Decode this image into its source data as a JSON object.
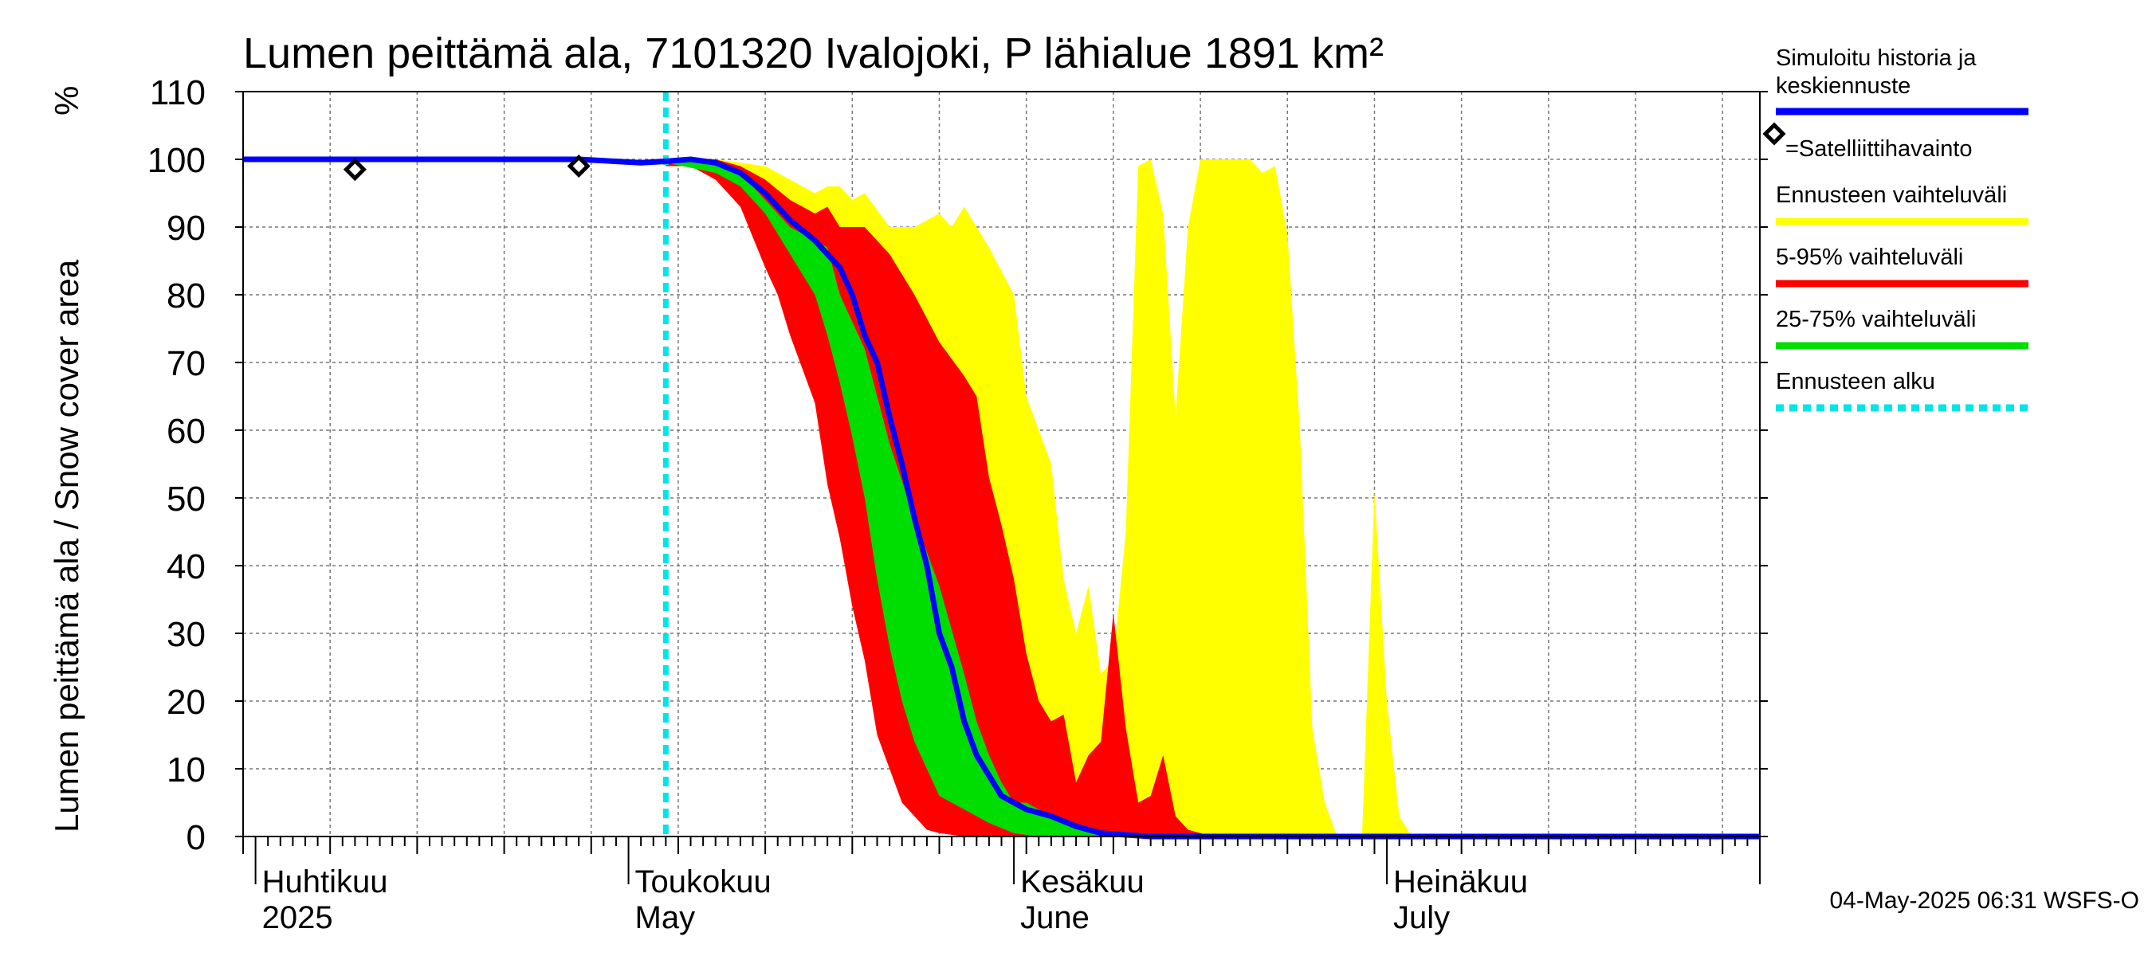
{
  "chart_data": {
    "type": "area",
    "title": "Lumen peittämä ala, 7101320 Ivalojoki, P lähialue 1891 km²",
    "ylabel": "Lumen peittämä ala / Snow cover area",
    "yunit": "%",
    "ylim": [
      0,
      110
    ],
    "yticks": [
      "0",
      "10",
      "20",
      "30",
      "40",
      "50",
      "60",
      "70",
      "80",
      "90",
      "100",
      "110"
    ],
    "xlim": [
      "2025-03-31",
      "2025-07-31"
    ],
    "grid": true,
    "legend_position": "right",
    "months": [
      {
        "date": "2025-04-01",
        "fi": "Huhtikuu",
        "en": "2025"
      },
      {
        "date": "2025-05-01",
        "fi": "Toukokuu",
        "en": "May"
      },
      {
        "date": "2025-06-01",
        "fi": "Kesäkuu",
        "en": "June"
      },
      {
        "date": "2025-07-01",
        "fi": "Heinäkuu",
        "en": "July"
      }
    ],
    "forecast_start": "2025-05-04",
    "timestamp": "04-May-2025 06:31 WSFS-O",
    "legend": [
      {
        "label": "Simuloitu historia ja keskiennuste",
        "lines": [
          "Simuloitu historia ja",
          "keskiennuste"
        ],
        "color": "#0000ff",
        "style": "solid"
      },
      {
        "label": "=Satelliittihavainto",
        "color": "#000000",
        "style": "marker"
      },
      {
        "label": "Ennusteen vaihteluväli",
        "color": "#ffff00",
        "style": "solid"
      },
      {
        "label": "5-95% vaihteluväli",
        "color": "#ff0000",
        "style": "solid"
      },
      {
        "label": "25-75% vaihteluväli",
        "color": "#00dd00",
        "style": "solid"
      },
      {
        "label": "Ennusteen alku",
        "color": "#00e5e5",
        "style": "dashed"
      }
    ],
    "satellite_points": [
      {
        "date": "2025-04-09",
        "value": 98.5
      },
      {
        "date": "2025-04-27",
        "value": 99
      }
    ],
    "series": [
      {
        "name": "Simuloitu historia ja keskiennuste",
        "color": "#0000ff",
        "points": [
          [
            "2025-03-31",
            100
          ],
          [
            "2025-04-27",
            100
          ],
          [
            "2025-05-02",
            99.5
          ],
          [
            "2025-05-04",
            99.7
          ],
          [
            "2025-05-06",
            100
          ],
          [
            "2025-05-08",
            99.5
          ],
          [
            "2025-05-10",
            98
          ],
          [
            "2025-05-12",
            95
          ],
          [
            "2025-05-14",
            91
          ],
          [
            "2025-05-16",
            88
          ],
          [
            "2025-05-18",
            84
          ],
          [
            "2025-05-19",
            80
          ],
          [
            "2025-05-20",
            74
          ],
          [
            "2025-05-21",
            70
          ],
          [
            "2025-05-22",
            62
          ],
          [
            "2025-05-23",
            55
          ],
          [
            "2025-05-24",
            47
          ],
          [
            "2025-05-25",
            40
          ],
          [
            "2025-05-26",
            30
          ],
          [
            "2025-05-27",
            25
          ],
          [
            "2025-05-28",
            17
          ],
          [
            "2025-05-29",
            12
          ],
          [
            "2025-05-30",
            9
          ],
          [
            "2025-05-31",
            6
          ],
          [
            "2025-06-02",
            4
          ],
          [
            "2025-06-04",
            3
          ],
          [
            "2025-06-06",
            1.5
          ],
          [
            "2025-06-08",
            0.5
          ],
          [
            "2025-06-12",
            0
          ],
          [
            "2025-07-31",
            0
          ]
        ]
      }
    ],
    "bands": [
      {
        "name": "Ennusteen vaihteluväli",
        "color": "#ffff00",
        "upper": [
          [
            "2025-05-04",
            100
          ],
          [
            "2025-05-08",
            100
          ],
          [
            "2025-05-12",
            99
          ],
          [
            "2025-05-14",
            97
          ],
          [
            "2025-05-16",
            95
          ],
          [
            "2025-05-17",
            96
          ],
          [
            "2025-05-18",
            96
          ],
          [
            "2025-05-19",
            94
          ],
          [
            "2025-05-20",
            95
          ],
          [
            "2025-05-22",
            90
          ],
          [
            "2025-05-24",
            90
          ],
          [
            "2025-05-26",
            92
          ],
          [
            "2025-05-27",
            90
          ],
          [
            "2025-05-28",
            93
          ],
          [
            "2025-05-30",
            87
          ],
          [
            "2025-06-01",
            80
          ],
          [
            "2025-06-02",
            65
          ],
          [
            "2025-06-04",
            55
          ],
          [
            "2025-06-05",
            38
          ],
          [
            "2025-06-06",
            30
          ],
          [
            "2025-06-07",
            37
          ],
          [
            "2025-06-08",
            24
          ],
          [
            "2025-06-09",
            26
          ],
          [
            "2025-06-10",
            45
          ],
          [
            "2025-06-11",
            99
          ],
          [
            "2025-06-12",
            100
          ],
          [
            "2025-06-13",
            92
          ],
          [
            "2025-06-14",
            62
          ],
          [
            "2025-06-15",
            90
          ],
          [
            "2025-06-16",
            100
          ],
          [
            "2025-06-18",
            100
          ],
          [
            "2025-06-20",
            100
          ],
          [
            "2025-06-21",
            98
          ],
          [
            "2025-06-22",
            99
          ],
          [
            "2025-06-23",
            89
          ],
          [
            "2025-06-24",
            60
          ],
          [
            "2025-06-25",
            16
          ],
          [
            "2025-06-26",
            5
          ],
          [
            "2025-06-27",
            0
          ],
          [
            "2025-06-28",
            0
          ],
          [
            "2025-06-29",
            0
          ],
          [
            "2025-06-30",
            51
          ],
          [
            "2025-07-01",
            20
          ],
          [
            "2025-07-02",
            3
          ],
          [
            "2025-07-03",
            0
          ],
          [
            "2025-07-31",
            0
          ]
        ],
        "lower": [
          [
            "2025-05-04",
            99
          ],
          [
            "2025-05-08",
            99
          ],
          [
            "2025-05-10",
            96
          ],
          [
            "2025-05-12",
            91
          ],
          [
            "2025-05-14",
            80
          ],
          [
            "2025-05-15",
            73
          ],
          [
            "2025-05-16",
            70
          ],
          [
            "2025-05-18",
            58
          ],
          [
            "2025-05-20",
            40
          ],
          [
            "2025-05-22",
            20
          ],
          [
            "2025-05-24",
            4
          ],
          [
            "2025-05-26",
            3
          ],
          [
            "2025-05-28",
            1
          ],
          [
            "2025-05-30",
            0.5
          ],
          [
            "2025-06-01",
            0
          ],
          [
            "2025-07-31",
            0
          ]
        ]
      },
      {
        "name": "5-95% vaihteluväli",
        "color": "#ff0000",
        "upper": [
          [
            "2025-05-04",
            100
          ],
          [
            "2025-05-08",
            100
          ],
          [
            "2025-05-10",
            99
          ],
          [
            "2025-05-12",
            97
          ],
          [
            "2025-05-14",
            94
          ],
          [
            "2025-05-16",
            92
          ],
          [
            "2025-05-17",
            93
          ],
          [
            "2025-05-18",
            90
          ],
          [
            "2025-05-20",
            90
          ],
          [
            "2025-05-22",
            86
          ],
          [
            "2025-05-24",
            80
          ],
          [
            "2025-05-26",
            73
          ],
          [
            "2025-05-28",
            68
          ],
          [
            "2025-05-29",
            65
          ],
          [
            "2025-05-30",
            53
          ],
          [
            "2025-05-31",
            46
          ],
          [
            "2025-06-01",
            38
          ],
          [
            "2025-06-02",
            27
          ],
          [
            "2025-06-03",
            20
          ],
          [
            "2025-06-04",
            17
          ],
          [
            "2025-06-05",
            18
          ],
          [
            "2025-06-06",
            8
          ],
          [
            "2025-06-07",
            12
          ],
          [
            "2025-06-08",
            14
          ],
          [
            "2025-06-09",
            33
          ],
          [
            "2025-06-10",
            16
          ],
          [
            "2025-06-11",
            5
          ],
          [
            "2025-06-12",
            6
          ],
          [
            "2025-06-13",
            12
          ],
          [
            "2025-06-14",
            3
          ],
          [
            "2025-06-15",
            1
          ],
          [
            "2025-06-17",
            0
          ],
          [
            "2025-07-31",
            0
          ]
        ],
        "lower": [
          [
            "2025-05-04",
            99
          ],
          [
            "2025-05-06",
            99
          ],
          [
            "2025-05-08",
            97
          ],
          [
            "2025-05-10",
            93
          ],
          [
            "2025-05-12",
            84
          ],
          [
            "2025-05-13",
            80
          ],
          [
            "2025-05-14",
            74
          ],
          [
            "2025-05-16",
            64
          ],
          [
            "2025-05-17",
            52
          ],
          [
            "2025-05-18",
            44
          ],
          [
            "2025-05-19",
            34
          ],
          [
            "2025-05-20",
            26
          ],
          [
            "2025-05-21",
            15
          ],
          [
            "2025-05-22",
            10
          ],
          [
            "2025-05-23",
            5
          ],
          [
            "2025-05-24",
            3
          ],
          [
            "2025-05-25",
            1
          ],
          [
            "2025-05-26",
            0.5
          ],
          [
            "2025-05-28",
            0
          ],
          [
            "2025-07-31",
            0
          ]
        ]
      },
      {
        "name": "25-75% vaihteluväli",
        "color": "#00dd00",
        "upper": [
          [
            "2025-05-04",
            100
          ],
          [
            "2025-05-08",
            99.5
          ],
          [
            "2025-05-10",
            98
          ],
          [
            "2025-05-12",
            94
          ],
          [
            "2025-05-14",
            90
          ],
          [
            "2025-05-16",
            88
          ],
          [
            "2025-05-17",
            87
          ],
          [
            "2025-05-18",
            80
          ],
          [
            "2025-05-20",
            72
          ],
          [
            "2025-05-22",
            58
          ],
          [
            "2025-05-24",
            47
          ],
          [
            "2025-05-26",
            37
          ],
          [
            "2025-05-28",
            24
          ],
          [
            "2025-05-29",
            17
          ],
          [
            "2025-05-30",
            12
          ],
          [
            "2025-05-31",
            8
          ],
          [
            "2025-06-01",
            5
          ],
          [
            "2025-06-02",
            5
          ],
          [
            "2025-06-04",
            3
          ],
          [
            "2025-06-06",
            1.5
          ],
          [
            "2025-06-08",
            0.5
          ],
          [
            "2025-06-10",
            0
          ],
          [
            "2025-07-31",
            0
          ]
        ],
        "lower": [
          [
            "2025-05-04",
            99.5
          ],
          [
            "2025-05-08",
            98
          ],
          [
            "2025-05-10",
            96
          ],
          [
            "2025-05-12",
            92
          ],
          [
            "2025-05-14",
            86
          ],
          [
            "2025-05-16",
            80
          ],
          [
            "2025-05-17",
            74
          ],
          [
            "2025-05-18",
            67
          ],
          [
            "2025-05-19",
            59
          ],
          [
            "2025-05-20",
            50
          ],
          [
            "2025-05-21",
            38
          ],
          [
            "2025-05-22",
            28
          ],
          [
            "2025-05-23",
            20
          ],
          [
            "2025-05-24",
            14
          ],
          [
            "2025-05-25",
            10
          ],
          [
            "2025-05-26",
            6
          ],
          [
            "2025-05-28",
            4
          ],
          [
            "2025-05-30",
            2
          ],
          [
            "2025-06-01",
            0.5
          ],
          [
            "2025-06-03",
            0
          ],
          [
            "2025-07-31",
            0
          ]
        ]
      }
    ]
  }
}
